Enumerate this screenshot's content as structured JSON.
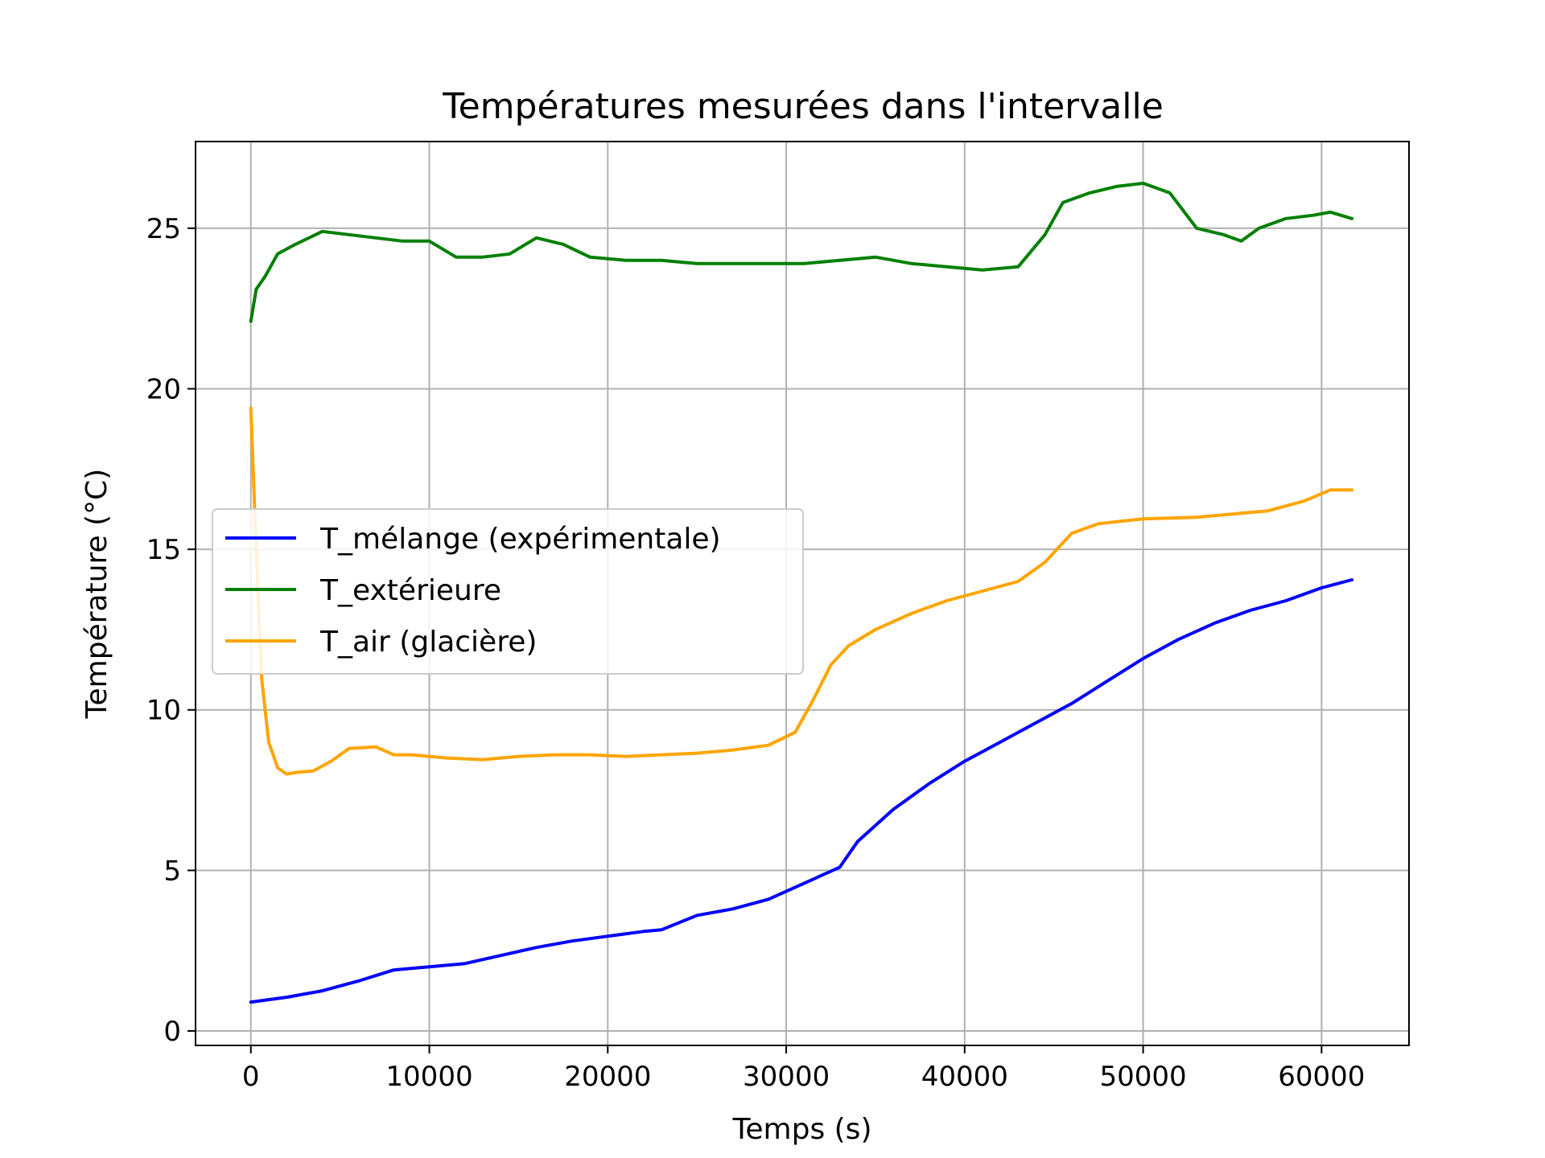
{
  "chart_data": {
    "type": "line",
    "title": "Températures mesurées dans l'intervalle",
    "xlabel": "Temps (s)",
    "ylabel": "Température (°C)",
    "xlim": [
      -3100,
      64900
    ],
    "ylim": [
      -0.45,
      27.7
    ],
    "xticks": [
      0,
      10000,
      20000,
      30000,
      40000,
      50000,
      60000
    ],
    "yticks": [
      0,
      5,
      10,
      15,
      20,
      25
    ],
    "grid": true,
    "legend_position": "center-left",
    "series": [
      {
        "name": "T_mélange (expérimentale)",
        "color": "#0000ff",
        "x": [
          0,
          2000,
          4000,
          6000,
          8000,
          10000,
          12000,
          14000,
          16000,
          18000,
          20000,
          22000,
          23000,
          25000,
          27000,
          29000,
          31000,
          33000,
          34000,
          36000,
          38000,
          40000,
          42000,
          44000,
          46000,
          48000,
          50000,
          52000,
          54000,
          56000,
          58000,
          60000,
          61700
        ],
        "y": [
          0.9,
          1.05,
          1.25,
          1.55,
          1.9,
          2.0,
          2.1,
          2.35,
          2.6,
          2.8,
          2.95,
          3.1,
          3.15,
          3.6,
          3.8,
          4.1,
          4.6,
          5.1,
          5.9,
          6.9,
          7.7,
          8.4,
          9.0,
          9.6,
          10.2,
          10.9,
          11.6,
          12.2,
          12.7,
          13.1,
          13.4,
          13.8,
          14.05
        ]
      },
      {
        "name": "T_extérieure",
        "color": "#008000",
        "x": [
          0,
          300,
          800,
          1500,
          2500,
          4000,
          5500,
          7000,
          8500,
          10000,
          11500,
          13000,
          14500,
          16000,
          17500,
          19000,
          21000,
          23000,
          25000,
          27000,
          29000,
          31000,
          33000,
          35000,
          37000,
          39000,
          41000,
          43000,
          44500,
          45500,
          47000,
          48500,
          50000,
          51500,
          53000,
          54500,
          55500,
          56500,
          58000,
          59500,
          60500,
          61700
        ],
        "y": [
          22.1,
          23.1,
          23.5,
          24.2,
          24.5,
          24.9,
          24.8,
          24.7,
          24.6,
          24.6,
          24.1,
          24.1,
          24.2,
          24.7,
          24.5,
          24.1,
          24.0,
          24.0,
          23.9,
          23.9,
          23.9,
          23.9,
          24.0,
          24.1,
          23.9,
          23.8,
          23.7,
          23.8,
          24.8,
          25.8,
          26.1,
          26.3,
          26.4,
          26.1,
          25.0,
          24.8,
          24.6,
          25.0,
          25.3,
          25.4,
          25.5,
          25.3
        ]
      },
      {
        "name": "T_air (glacière)",
        "color": "#ffa500",
        "x": [
          0,
          300,
          600,
          1000,
          1500,
          2000,
          2500,
          3500,
          4500,
          5500,
          7000,
          8000,
          9000,
          11000,
          13000,
          15000,
          17000,
          19000,
          21000,
          23000,
          25000,
          27000,
          29000,
          30500,
          31500,
          32500,
          33500,
          35000,
          37000,
          39000,
          41000,
          43000,
          44500,
          46000,
          47500,
          50000,
          53000,
          55000,
          57000,
          59000,
          60500,
          61700
        ],
        "y": [
          19.4,
          15.0,
          11.0,
          9.0,
          8.2,
          8.0,
          8.05,
          8.1,
          8.4,
          8.8,
          8.85,
          8.6,
          8.6,
          8.5,
          8.45,
          8.55,
          8.6,
          8.6,
          8.55,
          8.6,
          8.65,
          8.75,
          8.9,
          9.3,
          10.3,
          11.4,
          12.0,
          12.5,
          13.0,
          13.4,
          13.7,
          14.0,
          14.6,
          15.5,
          15.8,
          15.95,
          16.0,
          16.1,
          16.2,
          16.5,
          16.85,
          16.85
        ]
      }
    ]
  }
}
